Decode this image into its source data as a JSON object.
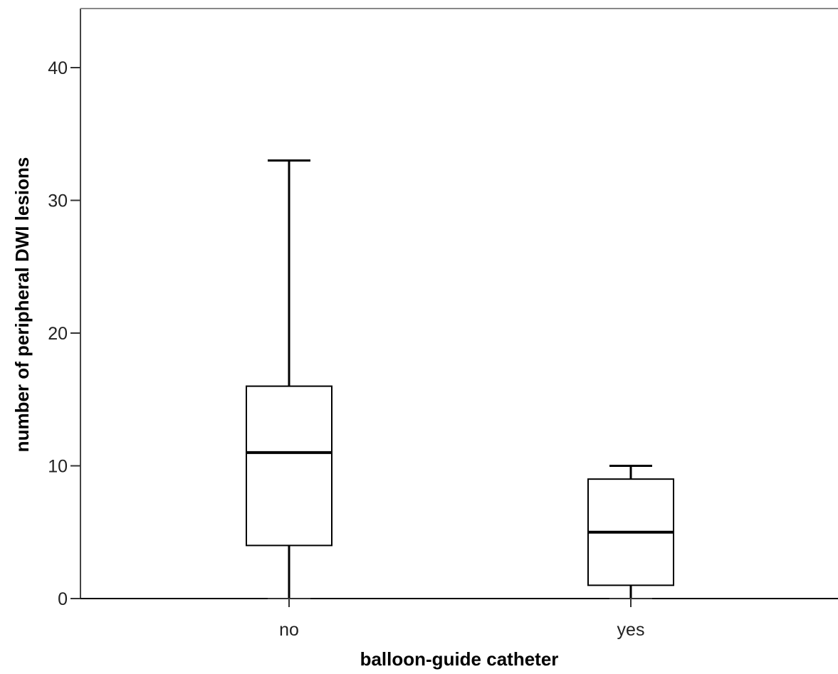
{
  "chart_data": {
    "type": "boxplot",
    "title": "",
    "xlabel": "balloon-guide catheter",
    "ylabel": "number of peripheral DWI lesions",
    "ylim": [
      0,
      44
    ],
    "yticks": [
      0,
      10,
      20,
      30,
      40
    ],
    "ytick_labels": [
      "0",
      "10",
      "20",
      "30",
      "40"
    ],
    "grid": false,
    "categories": [
      "no",
      "yes"
    ],
    "boxes": [
      {
        "category": "no",
        "min": 0,
        "q1": 4,
        "median": 11,
        "q3": 16,
        "max": 33
      },
      {
        "category": "yes",
        "min": 0,
        "q1": 1,
        "median": 5,
        "q3": 9,
        "max": 10
      }
    ]
  }
}
